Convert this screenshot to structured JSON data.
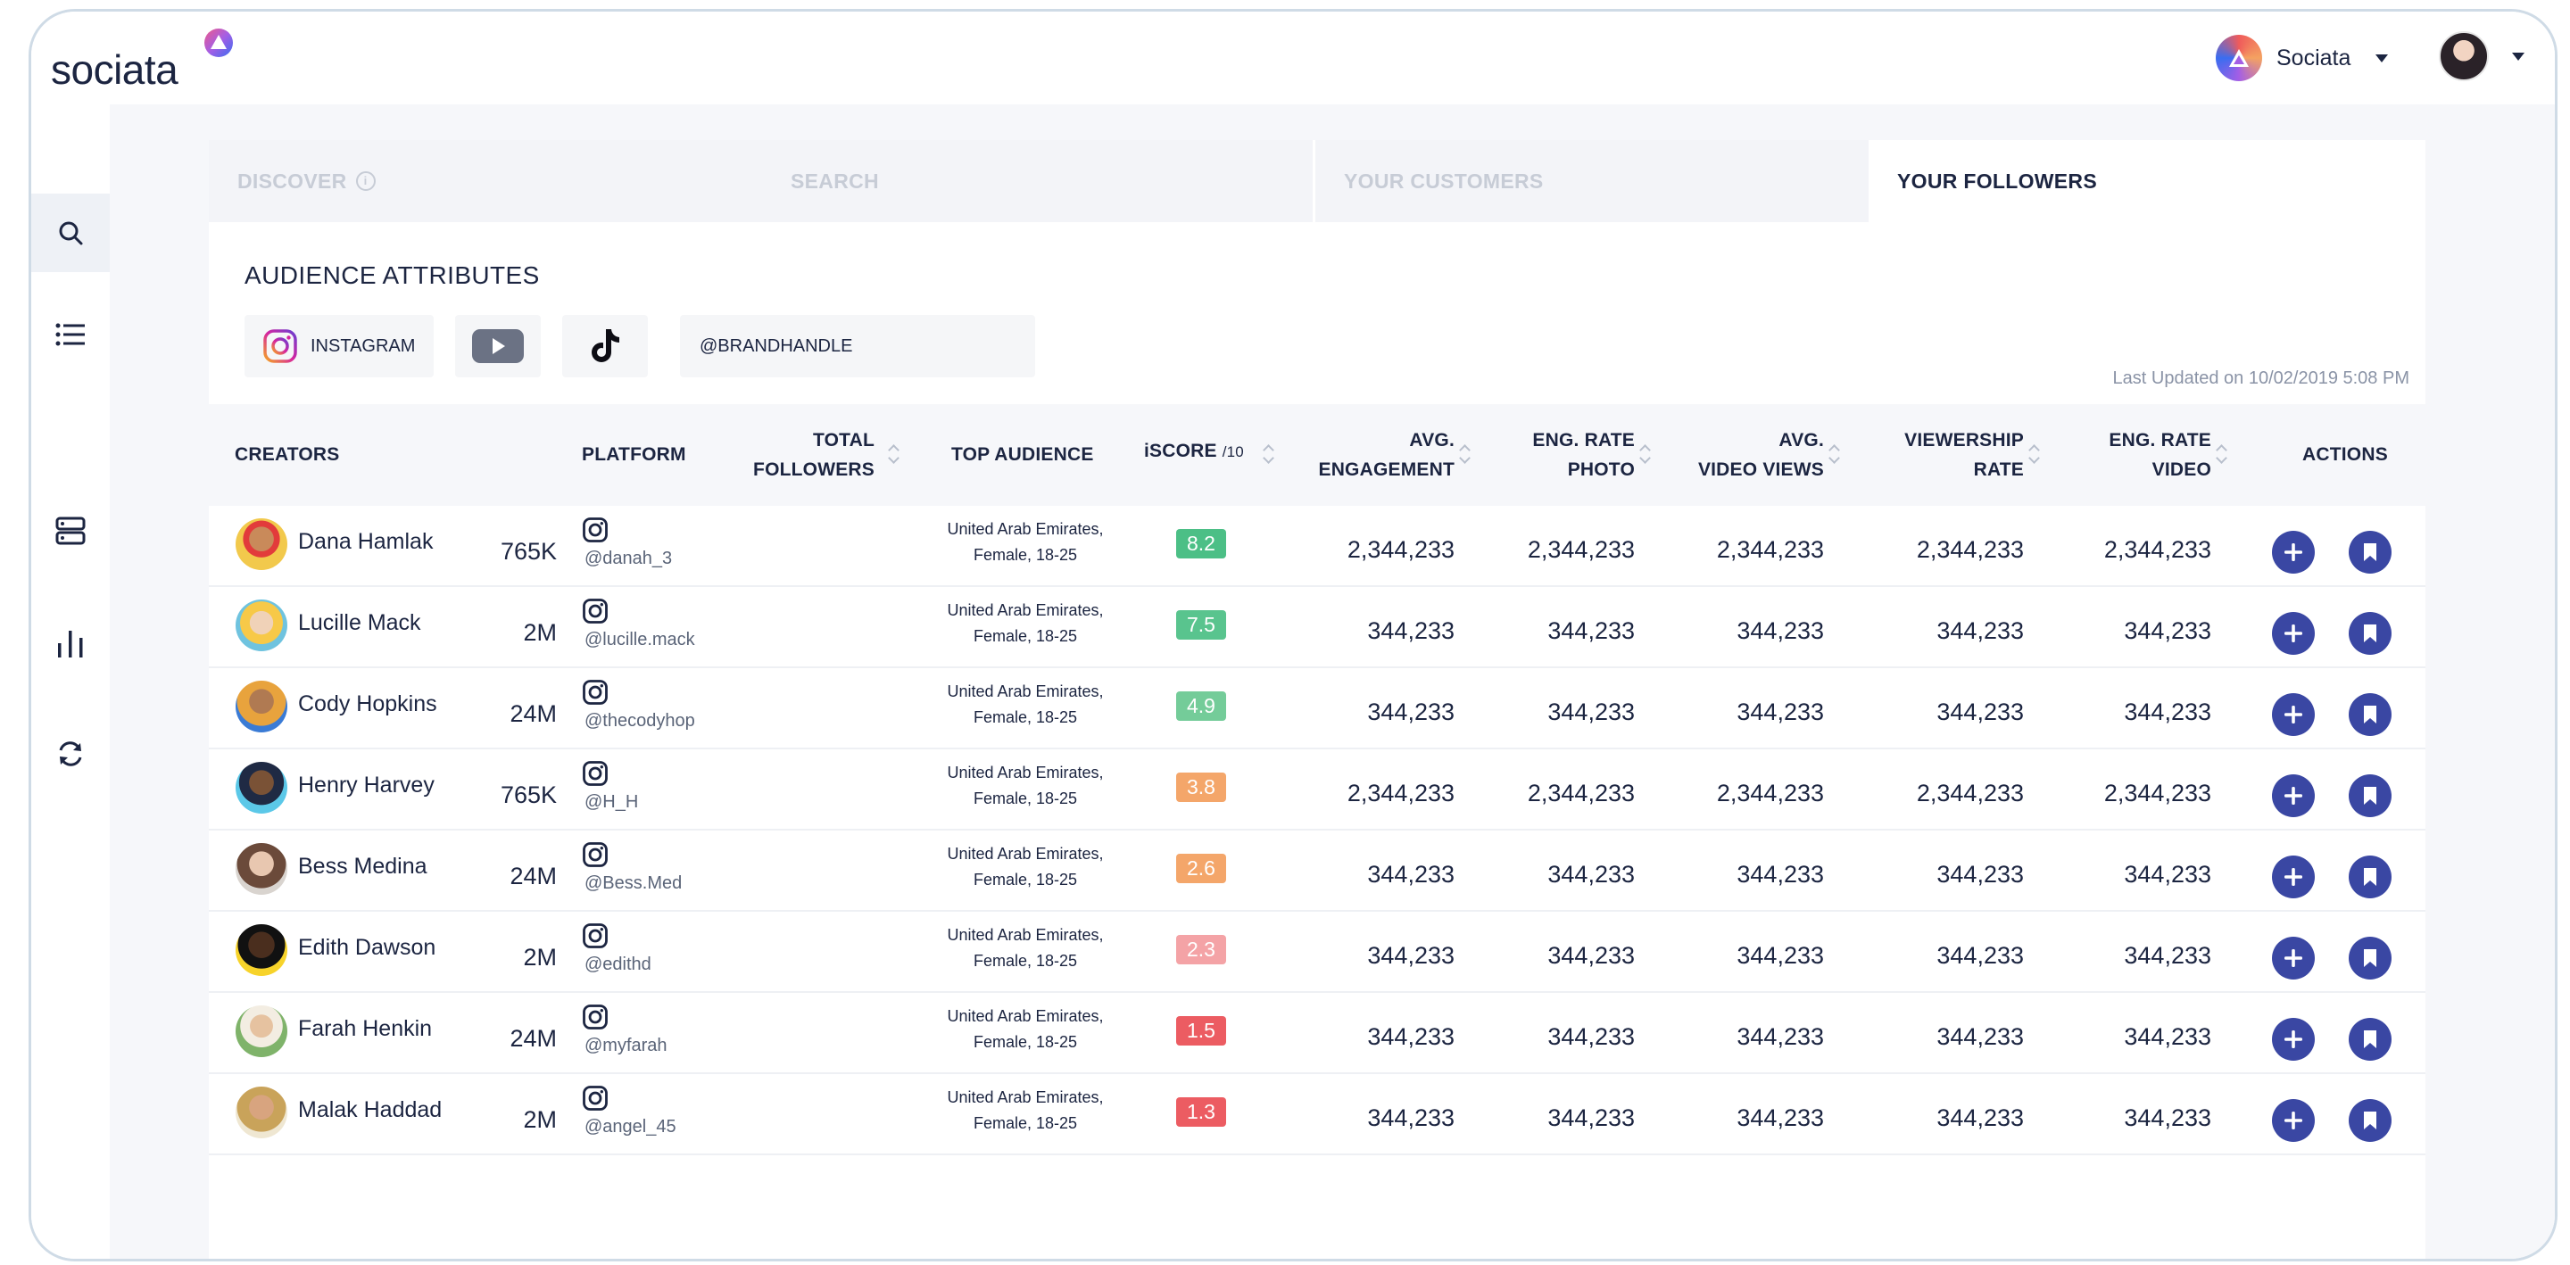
{
  "brand": {
    "name": "sociata"
  },
  "account": {
    "name": "Sociata"
  },
  "tabs": [
    {
      "label": "DISCOVER"
    },
    {
      "label": "SEARCH"
    },
    {
      "label": "YOUR CUSTOMERS"
    },
    {
      "label": "YOUR FOLLOWERS"
    }
  ],
  "audience": {
    "title": "AUDIENCE ATTRIBUTES",
    "instagram_label": "INSTAGRAM",
    "handle_value": "@BRANDHANDLE",
    "last_updated": "Last Updated on 10/02/2019 5:08 PM"
  },
  "table": {
    "headers": {
      "creators": "CREATORS",
      "platform": "PLATFORM",
      "total_followers_1": "TOTAL",
      "total_followers_2": "FOLLOWERS",
      "top_audience": "TOP AUDIENCE",
      "iscore": "iSCORE",
      "iscore_unit": "/10",
      "avg_eng_1": "AVG.",
      "avg_eng_2": "ENGAGEMENT",
      "eng_photo_1": "ENG. RATE",
      "eng_photo_2": "PHOTO",
      "avg_views_1": "AVG.",
      "avg_views_2": "VIDEO VIEWS",
      "viewership_1": "VIEWERSHIP",
      "viewership_2": "RATE",
      "eng_video_1": "ENG. RATE",
      "eng_video_2": "VIDEO",
      "actions": "ACTIONS"
    },
    "rows": [
      {
        "name": "Dana Hamlak",
        "handle": "@danah_3",
        "followers": "765K",
        "aud1": "United Arab Emirates,",
        "aud2": "Female, 18-25",
        "iscore": "8.2",
        "score_color": "#4cbf86",
        "avg_eng": "2,344,233",
        "eng_photo": "2,344,233",
        "avg_views": "2,344,233",
        "viewership": "2,344,233",
        "eng_video": "2,344,233"
      },
      {
        "name": "Lucille Mack",
        "handle": "@lucille.mack",
        "followers": "2M",
        "aud1": "United Arab Emirates,",
        "aud2": "Female, 18-25",
        "iscore": "7.5",
        "score_color": "#59c48e",
        "avg_eng": "344,233",
        "eng_photo": "344,233",
        "avg_views": "344,233",
        "viewership": "344,233",
        "eng_video": "344,233"
      },
      {
        "name": "Cody Hopkins",
        "handle": "@thecodyhop",
        "followers": "24M",
        "aud1": "United Arab Emirates,",
        "aud2": "Female, 18-25",
        "iscore": "4.9",
        "score_color": "#74cc99",
        "avg_eng": "344,233",
        "eng_photo": "344,233",
        "avg_views": "344,233",
        "viewership": "344,233",
        "eng_video": "344,233"
      },
      {
        "name": "Henry Harvey",
        "handle": "@H_H",
        "followers": "765K",
        "aud1": "United Arab Emirates,",
        "aud2": "Female, 18-25",
        "iscore": "3.8",
        "score_color": "#f4a66a",
        "avg_eng": "2,344,233",
        "eng_photo": "2,344,233",
        "avg_views": "2,344,233",
        "viewership": "2,344,233",
        "eng_video": "2,344,233"
      },
      {
        "name": "Bess Medina",
        "handle": "@Bess.Med",
        "followers": "24M",
        "aud1": "United Arab Emirates,",
        "aud2": "Female, 18-25",
        "iscore": "2.6",
        "score_color": "#f4a66a",
        "avg_eng": "344,233",
        "eng_photo": "344,233",
        "avg_views": "344,233",
        "viewership": "344,233",
        "eng_video": "344,233"
      },
      {
        "name": "Edith Dawson",
        "handle": "@edithd",
        "followers": "2M",
        "aud1": "United Arab Emirates,",
        "aud2": "Female, 18-25",
        "iscore": "2.3",
        "score_color": "#f4a3a6",
        "avg_eng": "344,233",
        "eng_photo": "344,233",
        "avg_views": "344,233",
        "viewership": "344,233",
        "eng_video": "344,233"
      },
      {
        "name": "Farah Henkin",
        "handle": "@myfarah",
        "followers": "24M",
        "aud1": "United Arab Emirates,",
        "aud2": "Female, 18-25",
        "iscore": "1.5",
        "score_color": "#ec5c62",
        "avg_eng": "344,233",
        "eng_photo": "344,233",
        "avg_views": "344,233",
        "viewership": "344,233",
        "eng_video": "344,233"
      },
      {
        "name": "Malak Haddad",
        "handle": "@angel_45",
        "followers": "2M",
        "aud1": "United Arab Emirates,",
        "aud2": "Female, 18-25",
        "iscore": "1.3",
        "score_color": "#ec5c62",
        "avg_eng": "344,233",
        "eng_photo": "344,233",
        "avg_views": "344,233",
        "viewership": "344,233",
        "eng_video": "344,233"
      }
    ]
  },
  "icons": {
    "nav": [
      "search-icon",
      "list-icon",
      "server-icon",
      "bar-chart-icon",
      "refresh-icon"
    ],
    "row_actions": [
      "add-icon",
      "bookmark-icon"
    ]
  },
  "colors": {
    "primary": "#3a47a3",
    "text": "#1c2541",
    "muted": "#c7ccd6"
  }
}
